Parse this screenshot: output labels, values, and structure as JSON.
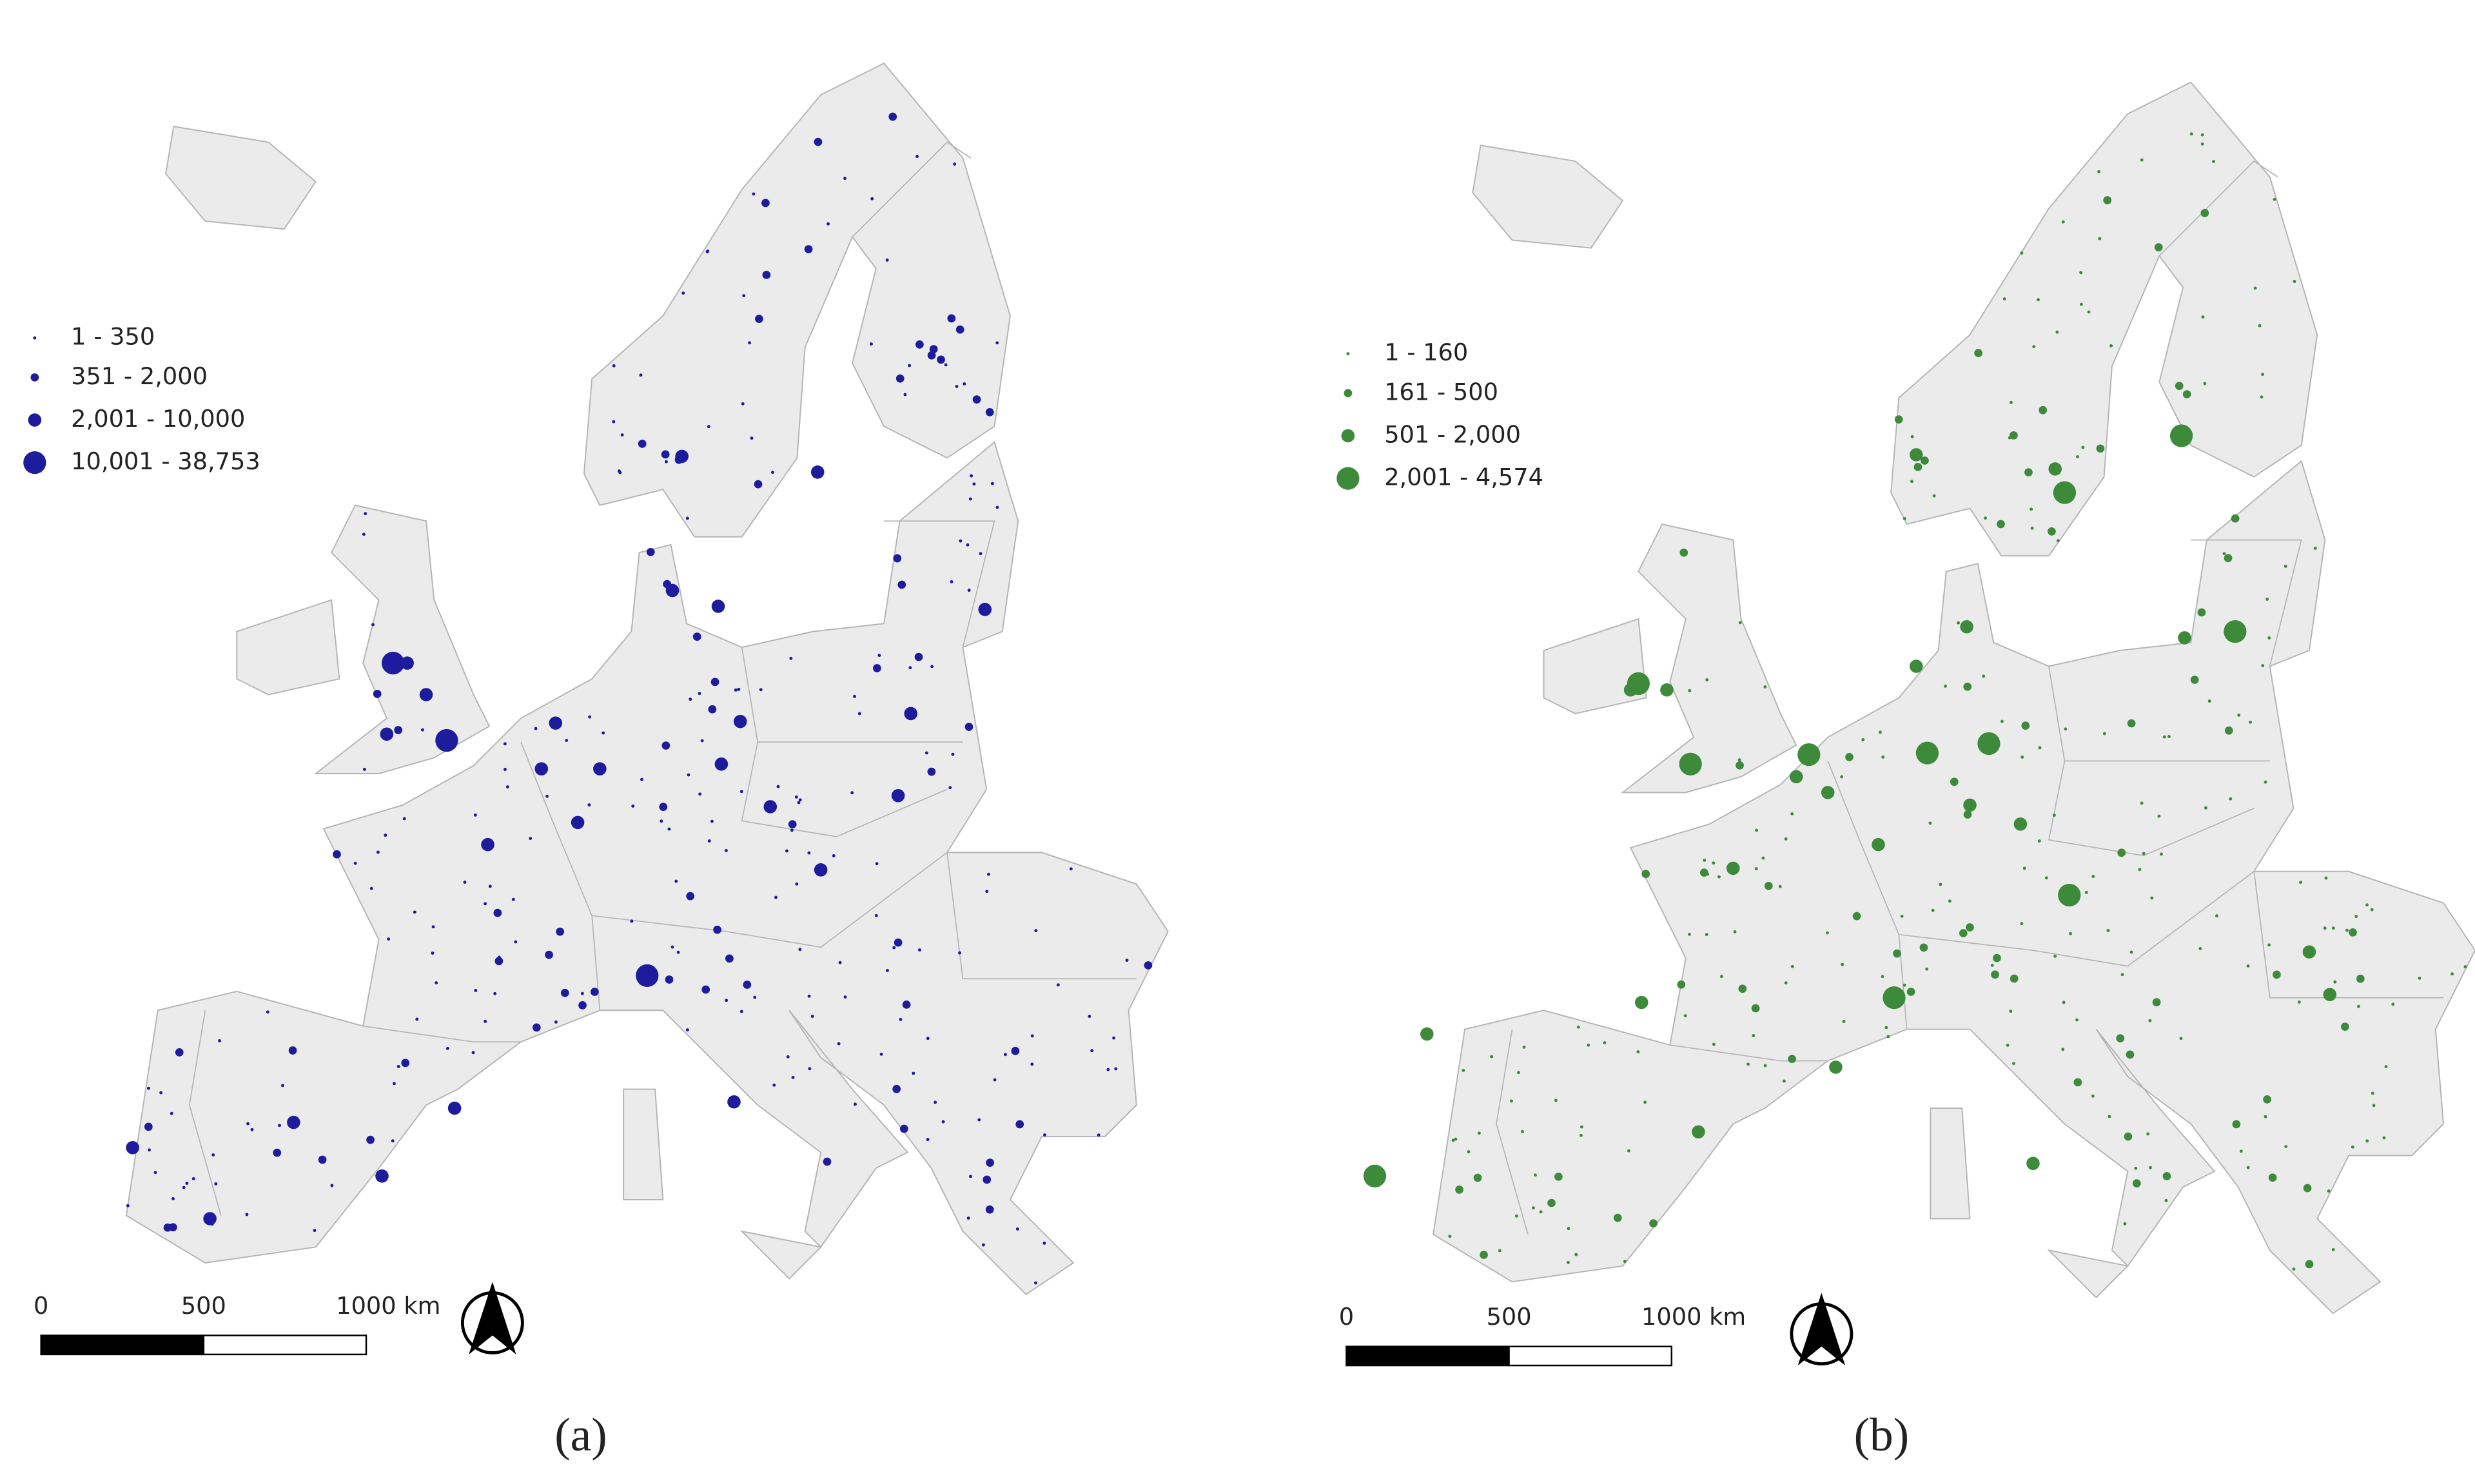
{
  "panels": [
    {
      "legend": [
        "1 - 350",
        "351 - 2,000",
        "2,001 - 10,000",
        "10,001 - 38,753"
      ],
      "scale_bar": [
        "0",
        "500",
        "1000 km"
      ],
      "caption": "(a)",
      "color": "#1c1c9c"
    },
    {
      "legend": [
        "1 - 160",
        "161 - 500",
        "501 - 2,000",
        "2,001 - 4,574"
      ],
      "scale_bar": [
        "0",
        "500",
        "1000 km"
      ],
      "caption": "(b)",
      "color": "#3d8a3a"
    }
  ]
}
